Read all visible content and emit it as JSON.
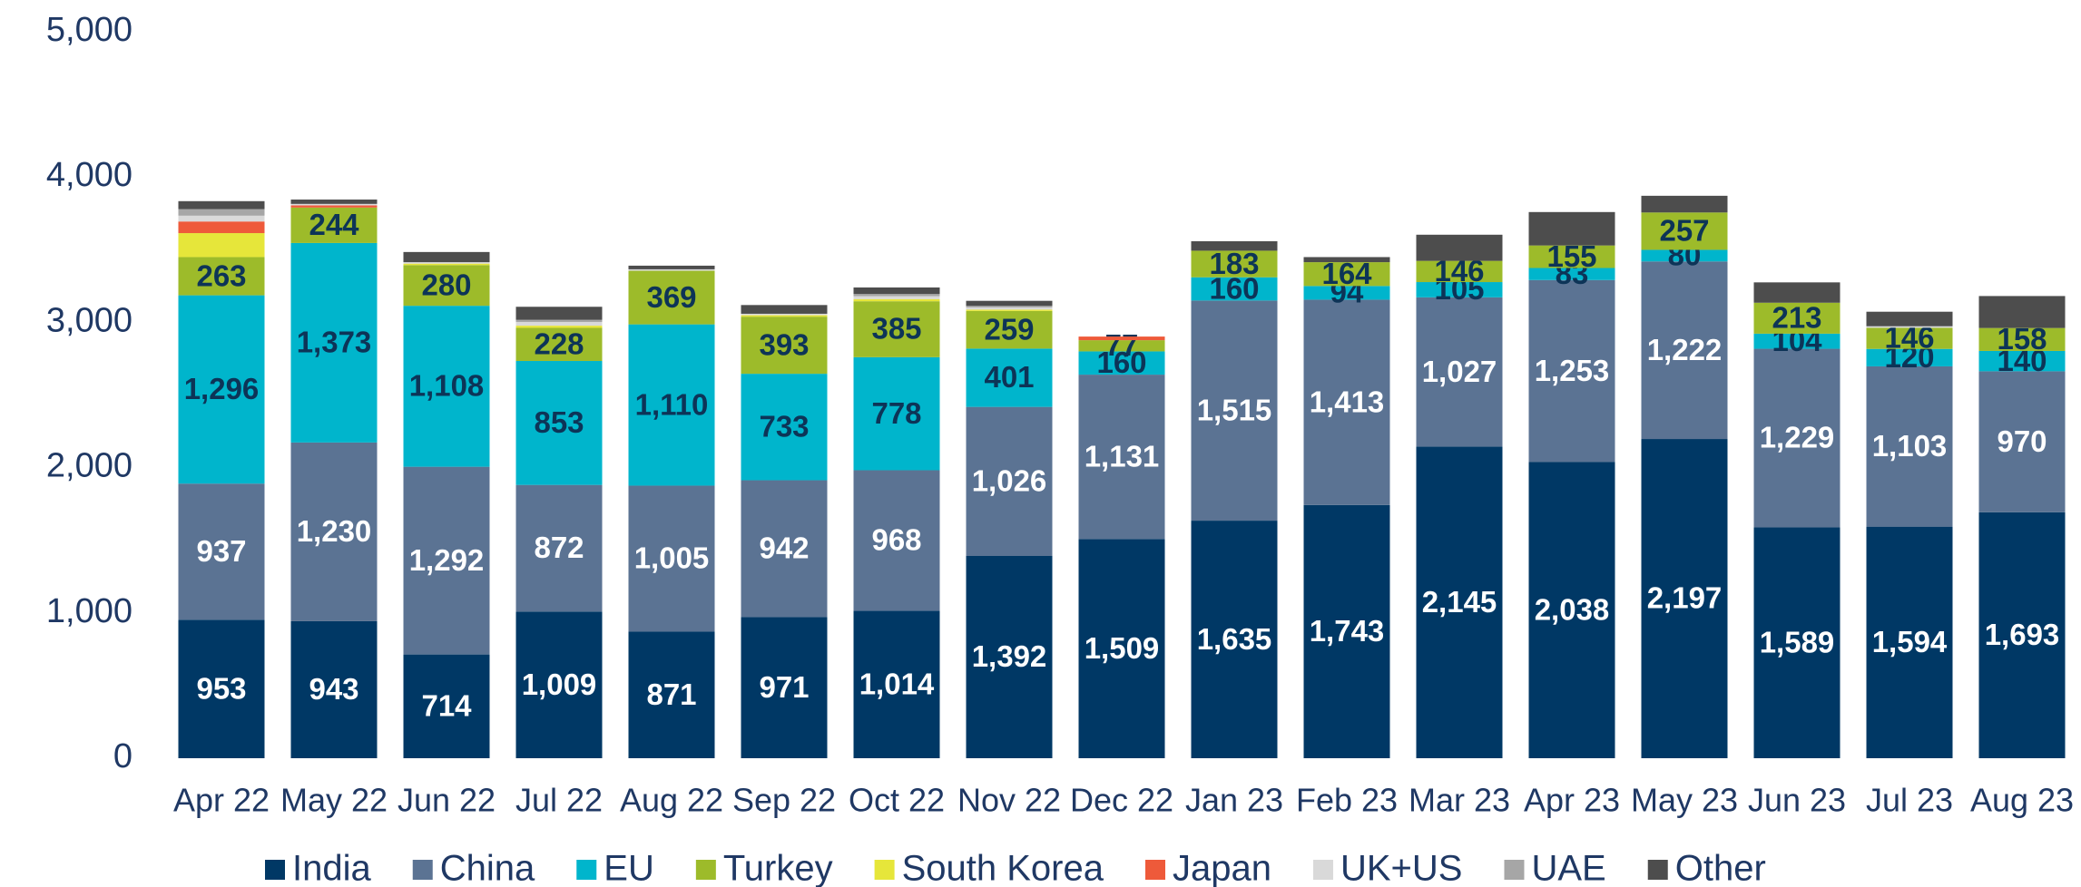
{
  "chart_data": {
    "type": "stacked_bar",
    "categories": [
      "Apr 22",
      "May 22",
      "Jun 22",
      "Jul 22",
      "Aug 22",
      "Sep 22",
      "Oct 22",
      "Nov 22",
      "Dec 22",
      "Jan 23",
      "Feb 23",
      "Mar 23",
      "Apr 23",
      "May 23",
      "Jun 23",
      "Jul 23",
      "Aug 23"
    ],
    "ylim": [
      0,
      5000
    ],
    "yticks": [
      0,
      {
        "value": 1000,
        "label": "1,000"
      },
      {
        "value": 2000,
        "label": "2,000"
      },
      {
        "value": 3000,
        "label": "3,000"
      },
      {
        "value": 4000,
        "label": "4,000"
      },
      {
        "value": 5000,
        "label": "5,000"
      }
    ],
    "grid": false,
    "legend": "bottom",
    "series": [
      {
        "name": "India",
        "color": "#003865",
        "label_color": "#ffffff",
        "values": [
          953,
          943,
          714,
          1009,
          871,
          971,
          1014,
          1392,
          1509,
          1635,
          1743,
          2145,
          2038,
          2197,
          1589,
          1594,
          1693
        ],
        "value_labels": [
          "953",
          "943",
          "714",
          "1,009",
          "871",
          "971",
          "1,014",
          "1,392",
          "1,509",
          "1,635",
          "1,743",
          "2,145",
          "2,038",
          "2,197",
          "1,589",
          "1,594",
          "1,693"
        ]
      },
      {
        "name": "China",
        "color": "#5b7393",
        "label_color": "#ffffff",
        "values": [
          937,
          1230,
          1292,
          872,
          1005,
          942,
          968,
          1026,
          1131,
          1515,
          1413,
          1027,
          1253,
          1222,
          1229,
          1103,
          970
        ],
        "value_labels": [
          "937",
          "1,230",
          "1,292",
          "872",
          "1,005",
          "942",
          "968",
          "1,026",
          "1,131",
          "1,515",
          "1,413",
          "1,027",
          "1,253",
          "1,222",
          "1,229",
          "1,103",
          "970"
        ]
      },
      {
        "name": "EU",
        "color": "#00b5cc",
        "label_color": "#0d3457",
        "values": [
          1296,
          1373,
          1108,
          853,
          1110,
          733,
          778,
          401,
          160,
          160,
          94,
          105,
          83,
          80,
          104,
          120,
          140
        ],
        "value_labels": [
          "1,296",
          "1,373",
          "1,108",
          "853",
          "1,110",
          "733",
          "778",
          "401",
          "160",
          "160",
          "94",
          "105",
          "83",
          "80",
          "104",
          "120",
          "140"
        ]
      },
      {
        "name": "Turkey",
        "color": "#9dbb2a",
        "label_color": "#0d3457",
        "values": [
          263,
          244,
          280,
          228,
          369,
          393,
          385,
          259,
          77,
          183,
          164,
          146,
          155,
          257,
          213,
          146,
          158
        ],
        "value_labels": [
          "263",
          "244",
          "280",
          "228",
          "369",
          "393",
          "385",
          "259",
          "77",
          "183",
          "164",
          "146",
          "155",
          "257",
          "213",
          "146",
          "158"
        ]
      },
      {
        "name": "South Korea",
        "color": "#e6e63a",
        "values": [
          165,
          0,
          10,
          15,
          0,
          10,
          15,
          10,
          0,
          0,
          0,
          0,
          0,
          0,
          0,
          0,
          0
        ]
      },
      {
        "name": "Japan",
        "color": "#ee5a3a",
        "values": [
          80,
          15,
          0,
          0,
          0,
          0,
          0,
          0,
          25,
          0,
          0,
          0,
          0,
          0,
          0,
          0,
          0
        ]
      },
      {
        "name": "UK+US",
        "color": "#d9d9d9",
        "values": [
          40,
          10,
          10,
          25,
          10,
          10,
          20,
          15,
          0,
          0,
          0,
          0,
          0,
          0,
          0,
          10,
          0
        ]
      },
      {
        "name": "UAE",
        "color": "#a6a6a6",
        "values": [
          45,
          0,
          0,
          15,
          0,
          0,
          15,
          10,
          0,
          0,
          0,
          0,
          0,
          0,
          0,
          0,
          0
        ]
      },
      {
        "name": "Other",
        "color": "#4d4d4d",
        "values": [
          55,
          30,
          70,
          90,
          25,
          60,
          45,
          35,
          0,
          65,
          35,
          180,
          230,
          115,
          140,
          100,
          220
        ]
      }
    ]
  }
}
